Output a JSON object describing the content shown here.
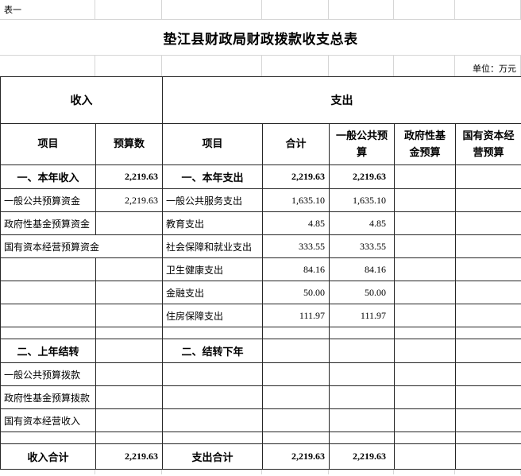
{
  "page": {
    "tag": "表一",
    "title": "垫江县财政局财政拨款收支总表",
    "unit_note": "单位：万元"
  },
  "colors": {
    "table_border": "#262626",
    "gridline": "#d6d6d6",
    "text": "#000000",
    "background": "#ffffff"
  },
  "table": {
    "group_headers": {
      "income": "收入",
      "expense": "支出"
    },
    "column_headers": {
      "income_item": "项目",
      "income_budget": "预算数",
      "expense_item": "项目",
      "expense_total": "合计",
      "expense_general": "一般公共预算",
      "expense_fund": "政府性基金预算",
      "expense_capital": "国有资本经营预算"
    },
    "rows": [
      {
        "kind": "section",
        "left_item": "一、本年收入",
        "left_value": "2,219.63",
        "right_item": "一、本年支出",
        "total": "2,219.63",
        "general": "2,219.63",
        "fund": "",
        "capital": ""
      },
      {
        "kind": "item",
        "left_item": "一般公共预算资金",
        "left_value": "2,219.63",
        "right_item": "一般公共服务支出",
        "total": "1,635.10",
        "general": "1,635.10",
        "fund": "",
        "capital": ""
      },
      {
        "kind": "item",
        "left_item": "政府性基金预算资金",
        "left_value": "",
        "right_item": "教育支出",
        "total": "4.85",
        "general": "4.85",
        "fund": "",
        "capital": ""
      },
      {
        "kind": "item",
        "left_item": "国有资本经营预算资金",
        "left_colspan": 2,
        "right_item": "社会保障和就业支出",
        "total": "333.55",
        "general": "333.55",
        "fund": "",
        "capital": ""
      },
      {
        "kind": "item",
        "left_item": "",
        "left_value": "",
        "right_item": "卫生健康支出",
        "total": "84.16",
        "general": "84.16",
        "fund": "",
        "capital": ""
      },
      {
        "kind": "item",
        "left_item": "",
        "left_value": "",
        "right_item": "金融支出",
        "total": "50.00",
        "general": "50.00",
        "fund": "",
        "capital": ""
      },
      {
        "kind": "item",
        "left_item": "",
        "left_value": "",
        "right_item": "住房保障支出",
        "total": "111.97",
        "general": "111.97",
        "fund": "",
        "capital": ""
      },
      {
        "kind": "spacer"
      },
      {
        "kind": "section",
        "left_item": "二、上年结转",
        "left_value": "",
        "right_item": "二、结转下年",
        "total": "",
        "general": "",
        "fund": "",
        "capital": ""
      },
      {
        "kind": "item",
        "left_item": "一般公共预算拨款",
        "left_value": "",
        "right_item": "",
        "total": "",
        "general": "",
        "fund": "",
        "capital": ""
      },
      {
        "kind": "item",
        "left_item": "政府性基金预算拨款",
        "left_value": "",
        "right_item": "",
        "total": "",
        "general": "",
        "fund": "",
        "capital": ""
      },
      {
        "kind": "item",
        "left_item": "国有资本经营收入",
        "left_value": "",
        "right_item": "",
        "total": "",
        "general": "",
        "fund": "",
        "capital": ""
      },
      {
        "kind": "spacer"
      },
      {
        "kind": "total",
        "left_item": "收入合计",
        "left_value": "2,219.63",
        "right_item": "支出合计",
        "total": "2,219.63",
        "general": "2,219.63",
        "fund": "",
        "capital": ""
      }
    ]
  }
}
